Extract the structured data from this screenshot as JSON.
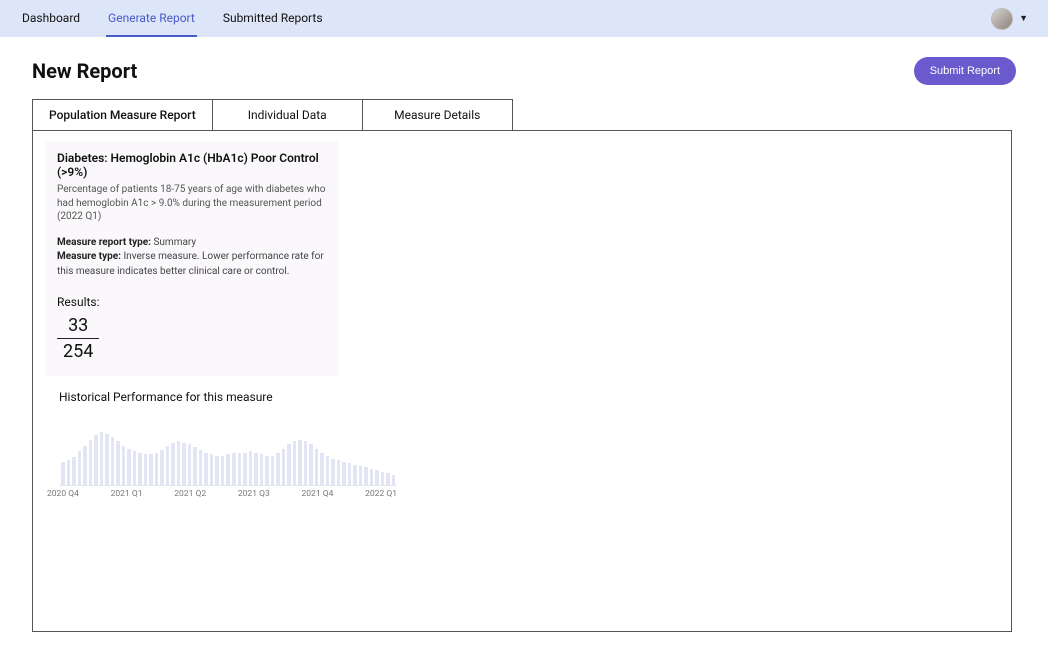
{
  "colors": {
    "topbar_bg": "#dde6f8",
    "nav_active_text": "#4a5ac7",
    "nav_active_border": "#4a5ac7",
    "submit_btn_bg": "#6a5acd",
    "submit_btn_text": "#ffffff",
    "measure_card_bg": "#faf8fb",
    "bar_color": "#e3e5f4",
    "panel_border": "#505050"
  },
  "topnav": {
    "items": [
      {
        "label": "Dashboard",
        "active": false
      },
      {
        "label": "Generate Report",
        "active": true
      },
      {
        "label": "Submitted Reports",
        "active": false
      }
    ]
  },
  "page": {
    "title": "New Report",
    "submit_label": "Submit Report"
  },
  "content_tabs": [
    {
      "label": "Population Measure Report",
      "active": true
    },
    {
      "label": "Individual Data",
      "active": false
    },
    {
      "label": "Measure Details",
      "active": false
    }
  ],
  "measure": {
    "title": "Diabetes: Hemoglobin A1c (HbA1c) Poor Control (>9%)",
    "description": "Percentage of patients 18-75 years of age with diabetes who had hemoglobin A1c > 9.0% during the measurement period (2022 Q1)",
    "report_type_label": "Measure report type:",
    "report_type_value": "Summary",
    "measure_type_label": "Measure type:",
    "measure_type_value": "Inverse measure. Lower performance rate for this measure indicates better clinical care or control.",
    "results_label": "Results:",
    "numerator": "33",
    "denominator": "254"
  },
  "historical": {
    "title": "Historical Performance for this measure",
    "type": "bar",
    "bar_color": "#e3e5f4",
    "ylim": [
      0,
      100
    ],
    "values": [
      32,
      34,
      38,
      46,
      54,
      62,
      68,
      72,
      70,
      66,
      60,
      54,
      50,
      46,
      44,
      42,
      42,
      44,
      48,
      54,
      58,
      60,
      58,
      56,
      52,
      48,
      44,
      42,
      40,
      40,
      42,
      44,
      44,
      44,
      46,
      44,
      42,
      40,
      40,
      44,
      50,
      56,
      60,
      62,
      60,
      56,
      50,
      44,
      40,
      36,
      34,
      32,
      30,
      28,
      26,
      24,
      22,
      20,
      18,
      16,
      14
    ],
    "x_labels": [
      "2020 Q4",
      "2021 Q1",
      "2021 Q2",
      "2021 Q3",
      "2021 Q4",
      "2022 Q1"
    ]
  }
}
